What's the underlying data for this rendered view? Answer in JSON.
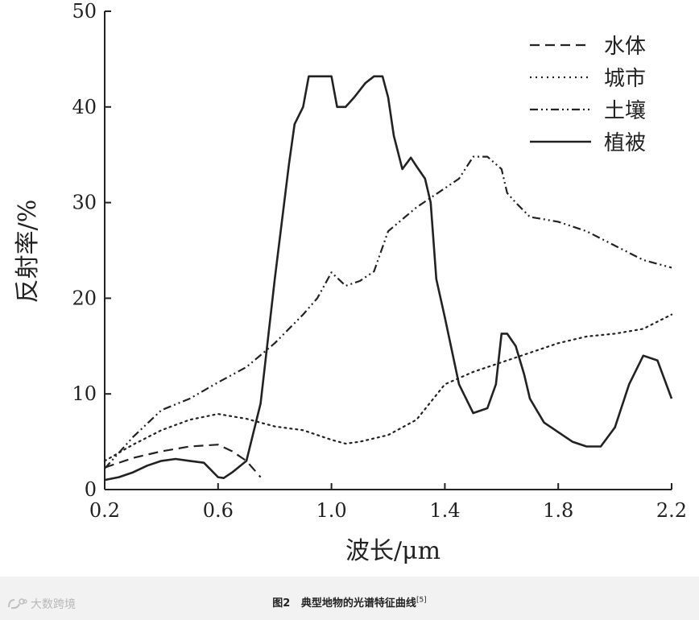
{
  "chart_data": {
    "type": "line",
    "xlabel": "波长/μm",
    "ylabel": "反射率/%",
    "xlim": [
      0.2,
      2.2
    ],
    "ylim": [
      0,
      50
    ],
    "xticks": [
      "0.2",
      "0.6",
      "1.0",
      "1.4",
      "1.8",
      "2.2"
    ],
    "yticks": [
      "0",
      "10",
      "20",
      "30",
      "40",
      "50"
    ],
    "grid": false,
    "legend_position": "top-right",
    "series": [
      {
        "name": "水体",
        "style": "dashed",
        "x": [
          0.2,
          0.3,
          0.4,
          0.5,
          0.6,
          0.65,
          0.7,
          0.75
        ],
        "y": [
          2.3,
          3.3,
          4.0,
          4.5,
          4.7,
          4.0,
          3.0,
          1.3
        ]
      },
      {
        "name": "城市",
        "style": "dotted",
        "x": [
          0.2,
          0.3,
          0.4,
          0.5,
          0.6,
          0.7,
          0.8,
          0.9,
          1.0,
          1.05,
          1.1,
          1.2,
          1.3,
          1.4,
          1.5,
          1.6,
          1.7,
          1.8,
          1.9,
          2.0,
          2.1,
          2.2
        ],
        "y": [
          3.0,
          4.7,
          6.2,
          7.3,
          7.9,
          7.4,
          6.6,
          6.2,
          5.2,
          4.8,
          5.0,
          5.7,
          7.3,
          11.0,
          12.3,
          13.3,
          14.3,
          15.3,
          16.0,
          16.3,
          16.8,
          18.3
        ]
      },
      {
        "name": "土壤",
        "style": "dash-dot-dot",
        "x": [
          0.2,
          0.3,
          0.4,
          0.5,
          0.6,
          0.7,
          0.8,
          0.9,
          0.95,
          1.0,
          1.05,
          1.1,
          1.15,
          1.2,
          1.3,
          1.4,
          1.45,
          1.5,
          1.55,
          1.6,
          1.62,
          1.65,
          1.7,
          1.8,
          1.9,
          2.0,
          2.1,
          2.2
        ],
        "y": [
          2.2,
          5.5,
          8.3,
          9.5,
          11.2,
          12.8,
          15.3,
          18.3,
          20.0,
          22.7,
          21.3,
          21.8,
          22.8,
          27.0,
          29.5,
          31.5,
          32.5,
          34.8,
          34.8,
          33.5,
          31.0,
          30.0,
          28.5,
          28.0,
          27.0,
          25.5,
          24.0,
          23.2
        ]
      },
      {
        "name": "植被",
        "style": "solid",
        "x": [
          0.2,
          0.25,
          0.3,
          0.35,
          0.4,
          0.45,
          0.5,
          0.55,
          0.6,
          0.62,
          0.65,
          0.7,
          0.75,
          0.8,
          0.85,
          0.87,
          0.9,
          0.92,
          1.0,
          1.02,
          1.05,
          1.08,
          1.12,
          1.15,
          1.18,
          1.2,
          1.22,
          1.25,
          1.28,
          1.3,
          1.33,
          1.35,
          1.37,
          1.4,
          1.45,
          1.5,
          1.55,
          1.58,
          1.6,
          1.62,
          1.65,
          1.68,
          1.7,
          1.75,
          1.8,
          1.85,
          1.9,
          1.95,
          2.0,
          2.05,
          2.1,
          2.15,
          2.2
        ],
        "y": [
          1.0,
          1.3,
          1.8,
          2.5,
          3.0,
          3.2,
          3.0,
          2.8,
          1.3,
          1.2,
          1.8,
          3.0,
          9.0,
          22.0,
          34.0,
          38.2,
          40.0,
          43.2,
          43.2,
          40.0,
          40.0,
          41.0,
          42.5,
          43.2,
          43.2,
          41.0,
          37.0,
          33.5,
          34.7,
          33.8,
          32.5,
          30.0,
          22.0,
          18.0,
          11.0,
          8.0,
          8.5,
          11.0,
          16.3,
          16.3,
          15.0,
          12.0,
          9.5,
          7.0,
          6.0,
          5.0,
          4.5,
          4.5,
          6.5,
          11.0,
          14.0,
          13.5,
          9.5
        ]
      }
    ]
  },
  "caption": {
    "label": "图2",
    "text": "典型地物的光谱特征曲线",
    "ref": "[5]"
  },
  "watermark": {
    "text": "大数跨境"
  }
}
